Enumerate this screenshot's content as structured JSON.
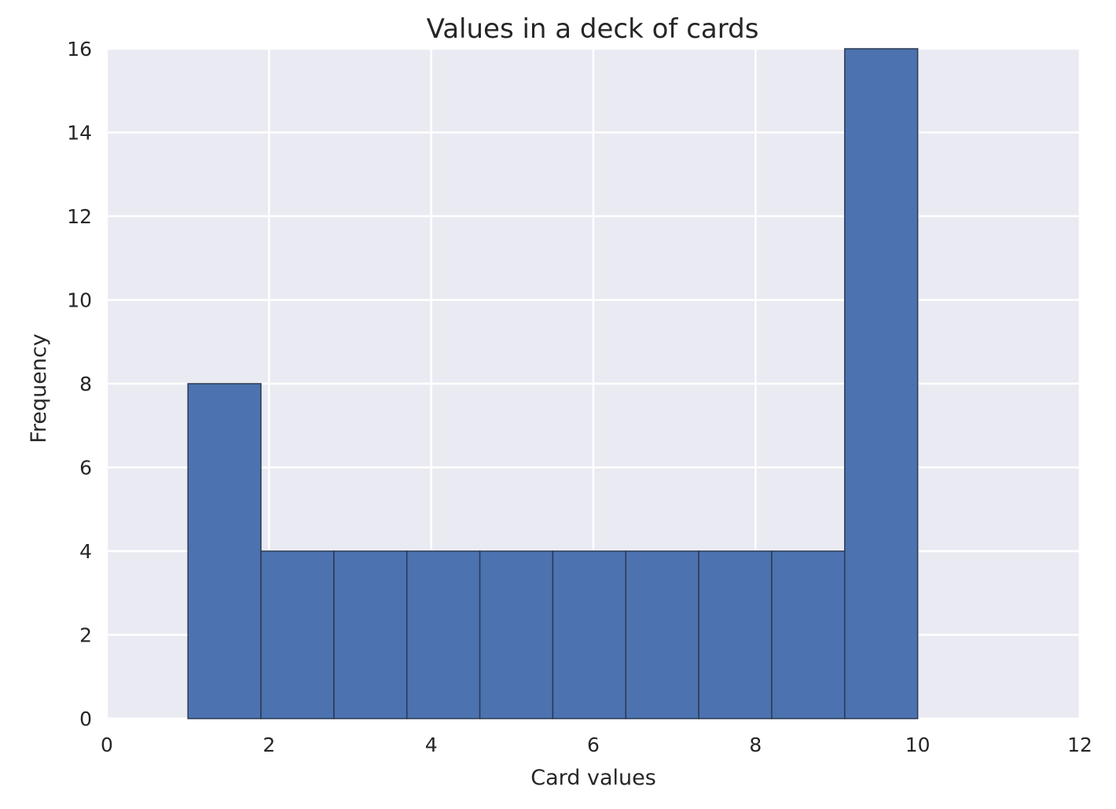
{
  "chart_data": {
    "type": "bar",
    "title": "Values in a deck of cards",
    "xlabel": "Card values",
    "ylabel": "Frequency",
    "xlim": [
      0,
      12
    ],
    "ylim": [
      0,
      16
    ],
    "xticks": [
      0,
      2,
      4,
      6,
      8,
      10,
      12
    ],
    "yticks": [
      0,
      2,
      4,
      6,
      8,
      10,
      12,
      14,
      16
    ],
    "grid": true,
    "bins": [
      {
        "start": 1.0,
        "end": 1.9,
        "count": 8
      },
      {
        "start": 1.9,
        "end": 2.8,
        "count": 4
      },
      {
        "start": 2.8,
        "end": 3.7,
        "count": 4
      },
      {
        "start": 3.7,
        "end": 4.6,
        "count": 4
      },
      {
        "start": 4.6,
        "end": 5.5,
        "count": 4
      },
      {
        "start": 5.5,
        "end": 6.4,
        "count": 4
      },
      {
        "start": 6.4,
        "end": 7.3,
        "count": 4
      },
      {
        "start": 7.3,
        "end": 8.2,
        "count": 4
      },
      {
        "start": 8.2,
        "end": 9.1,
        "count": 4
      },
      {
        "start": 9.1,
        "end": 10.0,
        "count": 16
      }
    ],
    "colors": {
      "plot_background": "#eaeaf2",
      "grid": "#ffffff",
      "bar_fill": "#4c72b0",
      "bar_edge": "#2b3a52",
      "text": "#262626"
    }
  }
}
